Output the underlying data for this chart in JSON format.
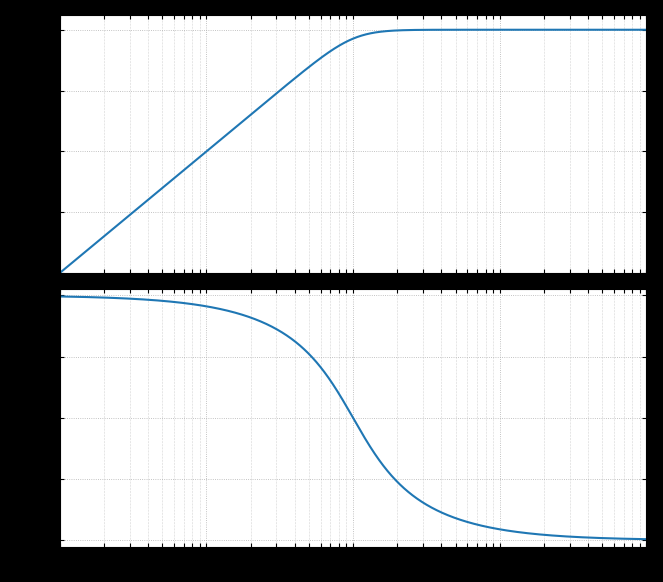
{
  "fig_width": 6.63,
  "fig_height": 5.82,
  "dpi": 100,
  "background_color": "#000000",
  "axes_facecolor": "#ffffff",
  "line_color": "#1f77b4",
  "line_width": 1.5,
  "freq_min": 0.1,
  "freq_max": 1000,
  "mag_ylim": [
    -80,
    5
  ],
  "phase_ylim": [
    -185,
    5
  ],
  "mag_yticks": [
    -80,
    -60,
    -40,
    -20,
    0
  ],
  "phase_yticks": [
    -180,
    -135,
    -90,
    -45,
    0
  ],
  "fn_hz": 10.0,
  "zeta": 0.7,
  "grid_color": "#b0b0b0",
  "grid_linestyle": ":"
}
